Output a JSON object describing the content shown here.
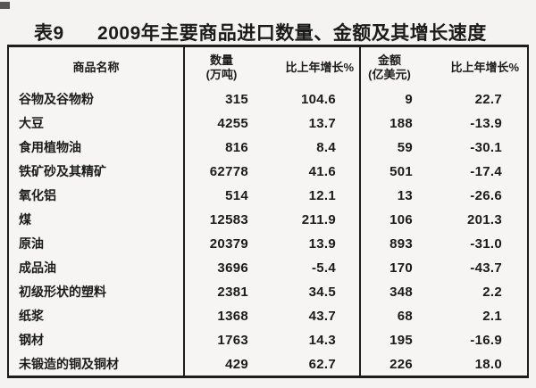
{
  "title": {
    "table_no": "表9",
    "text": "2009年主要商品进口数量、金额及其增长速度"
  },
  "table": {
    "header": {
      "name": "商品名称",
      "quantity_l1": "数量",
      "quantity_l2": "(万吨)",
      "quantity_growth": "比上年增长%",
      "amount_l1": "金额",
      "amount_l2": "(亿美元)",
      "amount_growth": "比上年增长%"
    },
    "rows": [
      {
        "name": "谷物及谷物粉",
        "quantity": "315",
        "quantity_growth": "104.6",
        "amount": "9",
        "amount_growth": "22.7"
      },
      {
        "name": "大豆",
        "quantity": "4255",
        "quantity_growth": "13.7",
        "amount": "188",
        "amount_growth": "-13.9"
      },
      {
        "name": "食用植物油",
        "quantity": "816",
        "quantity_growth": "8.4",
        "amount": "59",
        "amount_growth": "-30.1"
      },
      {
        "name": "铁矿砂及其精矿",
        "quantity": "62778",
        "quantity_growth": "41.6",
        "amount": "501",
        "amount_growth": "-17.4"
      },
      {
        "name": "氧化铝",
        "quantity": "514",
        "quantity_growth": "12.1",
        "amount": "13",
        "amount_growth": "-26.6"
      },
      {
        "name": "煤",
        "quantity": "12583",
        "quantity_growth": "211.9",
        "amount": "106",
        "amount_growth": "201.3"
      },
      {
        "name": "原油",
        "quantity": "20379",
        "quantity_growth": "13.9",
        "amount": "893",
        "amount_growth": "-31.0"
      },
      {
        "name": "成品油",
        "quantity": "3696",
        "quantity_growth": "-5.4",
        "amount": "170",
        "amount_growth": "-43.7"
      },
      {
        "name": "初级形状的塑料",
        "quantity": "2381",
        "quantity_growth": "34.5",
        "amount": "348",
        "amount_growth": "2.2"
      },
      {
        "name": "纸浆",
        "quantity": "1368",
        "quantity_growth": "43.7",
        "amount": "68",
        "amount_growth": "2.1"
      },
      {
        "name": "钢材",
        "quantity": "1763",
        "quantity_growth": "14.3",
        "amount": "195",
        "amount_growth": "-16.9"
      },
      {
        "name": "未锻造的铜及铜材",
        "quantity": "429",
        "quantity_growth": "62.7",
        "amount": "226",
        "amount_growth": "18.0"
      }
    ]
  },
  "chart_data": {
    "type": "table",
    "title": "表9 2009年主要商品进口数量、金额及其增长速度",
    "columns": [
      "商品名称",
      "数量(万吨)",
      "比上年增长%",
      "金额(亿美元)",
      "比上年增长%"
    ],
    "rows": [
      [
        "谷物及谷物粉",
        315,
        104.6,
        9,
        22.7
      ],
      [
        "大豆",
        4255,
        13.7,
        188,
        -13.9
      ],
      [
        "食用植物油",
        816,
        8.4,
        59,
        -30.1
      ],
      [
        "铁矿砂及其精矿",
        62778,
        41.6,
        501,
        -17.4
      ],
      [
        "氧化铝",
        514,
        12.1,
        13,
        -26.6
      ],
      [
        "煤",
        12583,
        211.9,
        106,
        201.3
      ],
      [
        "原油",
        20379,
        13.9,
        893,
        -31.0
      ],
      [
        "成品油",
        3696,
        -5.4,
        170,
        -43.7
      ],
      [
        "初级形状的塑料",
        2381,
        34.5,
        348,
        2.2
      ],
      [
        "纸浆",
        1368,
        43.7,
        68,
        2.1
      ],
      [
        "钢材",
        1763,
        14.3,
        195,
        -16.9
      ],
      [
        "未锻造的铜及铜材",
        429,
        62.7,
        226,
        18.0
      ]
    ],
    "colors": {
      "text": "#1b1b1b",
      "border": "#1d1d1d",
      "background": "#f4f3f1"
    }
  }
}
